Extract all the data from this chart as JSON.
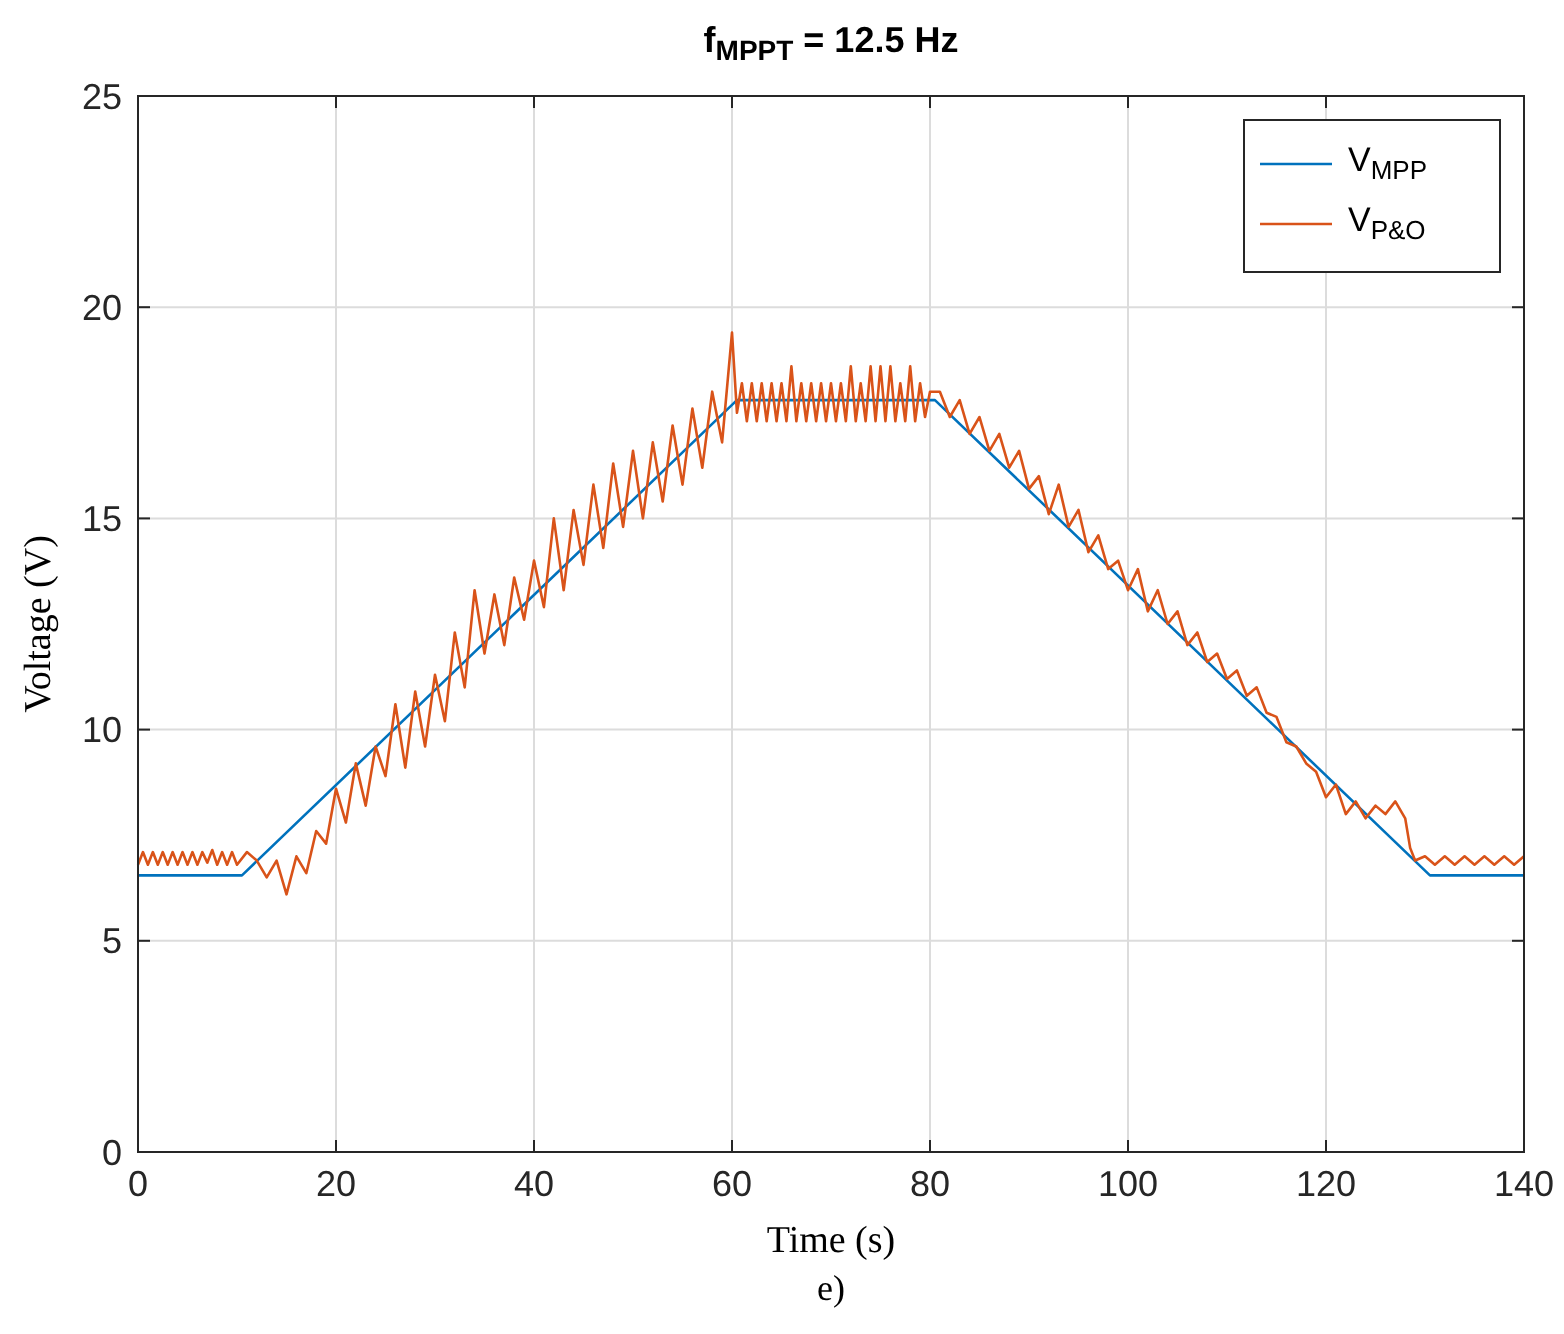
{
  "chart_data": {
    "type": "line",
    "title": "f$_{MPPT}$ = 12.5 Hz",
    "xlabel": "Time (s)",
    "ylabel": "Voltage (V)",
    "annotations": [
      "e)"
    ],
    "xlim": [
      0,
      140
    ],
    "xticks": [
      0,
      20,
      40,
      60,
      80,
      100,
      120,
      140
    ],
    "ylim": [
      0,
      25
    ],
    "yticks": [
      0,
      5,
      10,
      15,
      20,
      25
    ],
    "grid": true,
    "legend": "top right",
    "series": [
      {
        "name": "V$_{MPP}$",
        "color": "#0072bd",
        "x": [
          0,
          10.5,
          60.5,
          80.5,
          130.5,
          140
        ],
        "values": [
          6.55,
          6.55,
          17.8,
          17.8,
          6.55,
          6.55
        ]
      },
      {
        "name": "V$_{P&O}$",
        "color": "#d95319",
        "x": [
          0,
          0.5,
          1,
          1.5,
          2,
          2.5,
          3,
          3.5,
          4,
          4.5,
          5,
          5.5,
          6,
          6.5,
          7,
          7.5,
          8,
          8.5,
          9,
          9.5,
          10,
          11,
          12,
          13,
          14,
          15,
          16,
          17,
          18,
          19,
          20,
          21,
          22,
          23,
          24,
          25,
          26,
          27,
          28,
          29,
          30,
          31,
          32,
          33,
          34,
          35,
          36,
          37,
          38,
          39,
          40,
          41,
          42,
          43,
          44,
          45,
          46,
          47,
          48,
          49,
          50,
          51,
          52,
          53,
          54,
          55,
          56,
          57,
          58,
          59,
          60,
          60.5,
          61,
          61.5,
          62,
          62.5,
          63,
          63.5,
          64,
          64.5,
          65,
          65.5,
          66,
          66.5,
          67,
          67.5,
          68,
          68.5,
          69,
          69.5,
          70,
          70.5,
          71,
          71.5,
          72,
          72.5,
          73,
          73.5,
          74,
          74.5,
          75,
          75.5,
          76,
          76.5,
          77,
          77.5,
          78,
          78.5,
          79,
          79.5,
          80,
          81,
          82,
          83,
          84,
          85,
          86,
          87,
          88,
          89,
          90,
          91,
          92,
          93,
          94,
          95,
          96,
          97,
          98,
          99,
          100,
          101,
          102,
          103,
          104,
          105,
          106,
          107,
          108,
          109,
          110,
          111,
          112,
          113,
          114,
          115,
          116,
          117,
          118,
          119,
          120,
          121,
          122,
          123,
          124,
          125,
          126,
          127,
          128,
          128.5,
          129,
          130,
          131,
          132,
          133,
          134,
          135,
          136,
          137,
          138,
          139,
          140
        ],
        "values": [
          6.8,
          7.1,
          6.8,
          7.1,
          6.8,
          7.1,
          6.8,
          7.1,
          6.8,
          7.1,
          6.8,
          7.1,
          6.8,
          7.1,
          6.85,
          7.15,
          6.8,
          7.1,
          6.8,
          7.1,
          6.8,
          7.1,
          6.9,
          6.5,
          6.9,
          6.1,
          7.0,
          6.6,
          7.6,
          7.3,
          8.6,
          7.8,
          9.2,
          8.2,
          9.6,
          8.9,
          10.6,
          9.1,
          10.9,
          9.6,
          11.3,
          10.2,
          12.3,
          11.0,
          13.3,
          11.8,
          13.2,
          12.0,
          13.6,
          12.6,
          14.0,
          12.9,
          15.0,
          13.3,
          15.2,
          13.9,
          15.8,
          14.3,
          16.3,
          14.8,
          16.6,
          15.0,
          16.8,
          15.4,
          17.2,
          15.8,
          17.6,
          16.2,
          18.0,
          16.8,
          19.4,
          17.5,
          18.2,
          17.3,
          18.2,
          17.3,
          18.2,
          17.3,
          18.2,
          17.3,
          18.2,
          17.3,
          18.6,
          17.3,
          18.2,
          17.3,
          18.2,
          17.3,
          18.2,
          17.3,
          18.2,
          17.3,
          18.2,
          17.3,
          18.6,
          17.3,
          18.2,
          17.3,
          18.6,
          17.3,
          18.6,
          17.3,
          18.6,
          17.3,
          18.2,
          17.3,
          18.6,
          17.3,
          18.2,
          17.4,
          18.0,
          18.0,
          17.4,
          17.8,
          17.0,
          17.4,
          16.6,
          17.0,
          16.2,
          16.6,
          15.7,
          16.0,
          15.1,
          15.8,
          14.8,
          15.2,
          14.2,
          14.6,
          13.8,
          14.0,
          13.3,
          13.8,
          12.8,
          13.3,
          12.5,
          12.8,
          12.0,
          12.3,
          11.6,
          11.8,
          11.2,
          11.4,
          10.8,
          11.0,
          10.4,
          10.3,
          9.7,
          9.6,
          9.2,
          9.0,
          8.4,
          8.7,
          8.0,
          8.3,
          7.9,
          8.2,
          8.0,
          8.3,
          7.9,
          7.2,
          6.9,
          7.0,
          6.8,
          7.0,
          6.8,
          7.0,
          6.8,
          7.0,
          6.8,
          7.0,
          6.8,
          7.0
        ]
      }
    ]
  }
}
